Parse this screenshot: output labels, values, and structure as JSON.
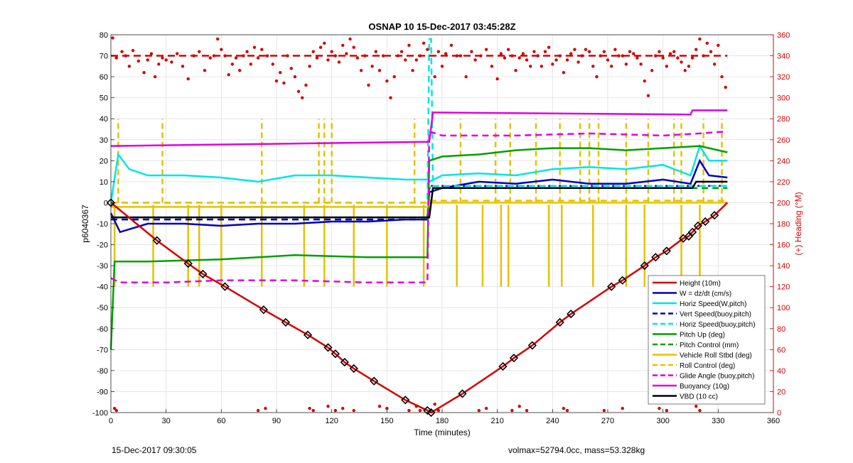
{
  "title": "OSNAP 10 15-Dec-2017 03:45:28Z",
  "footer_left": "15-Dec-2017 09:30:05",
  "footer_right": "volmax=52794.0cc, mass=53.328kg",
  "chart_data": {
    "type": "line",
    "xlabel": "Time (minutes)",
    "ylabel_left": "p6040367",
    "ylabel_right": "(+) Heading (°M)",
    "xlim": [
      0,
      360
    ],
    "ylim_left": [
      -100,
      80
    ],
    "ylim_right": [
      0,
      360
    ],
    "grid": true,
    "legend_placement": "lower-right",
    "x_ticks": [
      "0",
      "30",
      "60",
      "90",
      "120",
      "150",
      "180",
      "210",
      "240",
      "270",
      "300",
      "330",
      "360"
    ],
    "y_ticks_left": [
      "80",
      "70",
      "60",
      "50",
      "40",
      "30",
      "20",
      "10",
      "0",
      "-10",
      "-20",
      "-30",
      "-40",
      "-50",
      "-60",
      "-70",
      "-80",
      "-90",
      "-100"
    ],
    "y_ticks_right": [
      "360",
      "340",
      "320",
      "300",
      "280",
      "260",
      "240",
      "220",
      "200",
      "180",
      "160",
      "140",
      "120",
      "100",
      "80",
      "60",
      "40",
      "20",
      "0"
    ],
    "colors": {
      "red": "#d40000",
      "blue": "#0000c0",
      "cyan": "#00e5e5",
      "green": "#00a000",
      "yellow": "#e6c200",
      "magenta": "#e000e0",
      "black": "#000000"
    },
    "series": [
      {
        "name": "Height (10m)",
        "color": "#d40000",
        "style": "solid",
        "x": [
          0,
          25,
          42,
          50,
          62,
          83,
          95,
          107,
          118,
          122,
          127,
          132,
          143,
          160,
          172,
          174,
          191,
          213,
          219,
          229,
          244,
          250,
          272,
          278,
          290,
          296,
          302,
          311,
          314,
          316,
          319,
          323,
          328,
          335
        ],
        "y": [
          0,
          -18,
          -29,
          -34,
          -40,
          -51,
          -57,
          -63,
          -69,
          -72,
          -76,
          -79,
          -85,
          -94,
          -99,
          -100,
          -91,
          -78,
          -74,
          -68,
          -57,
          -53,
          -40,
          -37,
          -30,
          -26,
          -23,
          -17,
          -16,
          -14,
          -11,
          -9,
          -6,
          0
        ]
      },
      {
        "name": "W = dz/dt (cm/s)",
        "color": "#0000c0",
        "style": "solid",
        "x": [
          0,
          5,
          20,
          40,
          60,
          80,
          100,
          120,
          140,
          160,
          172,
          173,
          180,
          200,
          220,
          240,
          260,
          280,
          300,
          315,
          320,
          325,
          335
        ],
        "y": [
          -5,
          -14,
          -10,
          -10,
          -11,
          -10,
          -10,
          -9,
          -9,
          -8,
          -8,
          5,
          7,
          10,
          9,
          11,
          9,
          9,
          11,
          9,
          20,
          13,
          12
        ]
      },
      {
        "name": "Horiz Speed(W,pitch)",
        "color": "#00e5e5",
        "style": "solid",
        "x": [
          0,
          4,
          10,
          20,
          40,
          60,
          80,
          100,
          120,
          140,
          160,
          172,
          173,
          180,
          200,
          220,
          240,
          260,
          280,
          300,
          315,
          320,
          325,
          335
        ],
        "y": [
          0,
          23,
          16,
          13,
          13,
          12,
          10,
          13,
          13,
          12,
          11,
          11,
          10,
          13,
          14,
          13,
          16,
          17,
          16,
          18,
          13,
          27,
          20,
          20
        ]
      },
      {
        "name": "Vert Speed(buoy,pitch)",
        "color": "#0000c0",
        "style": "dash",
        "x": [
          0,
          172,
          173,
          335
        ],
        "y": [
          -8,
          -8,
          8,
          8
        ]
      },
      {
        "name": "Horiz Speed(buoy,pitch)",
        "color": "#00e5e5",
        "style": "dash",
        "x": [
          0,
          172,
          173,
          174,
          175,
          335
        ],
        "y": [
          0,
          0,
          78,
          78,
          8,
          8
        ]
      },
      {
        "name": "Pitch Up (deg)",
        "color": "#00a000",
        "style": "solid",
        "x": [
          0,
          2,
          20,
          60,
          80,
          100,
          140,
          160,
          172,
          173,
          180,
          200,
          220,
          240,
          260,
          280,
          300,
          320,
          335
        ],
        "y": [
          -70,
          -28,
          -28,
          -27,
          -26,
          -25,
          -26,
          -26,
          -26,
          20,
          22,
          23,
          25,
          26,
          26,
          25,
          26,
          27,
          24
        ]
      },
      {
        "name": "Pitch Control (mm)",
        "color": "#00a000",
        "style": "dash",
        "x": [
          0,
          172,
          173,
          335
        ],
        "y": [
          -7,
          -7,
          7,
          7
        ]
      },
      {
        "name": "Vehicle Roll Stbd (deg)",
        "color": "#e6c200",
        "style": "solid",
        "x": [
          0,
          172,
          173,
          335
        ],
        "y": [
          -2,
          -2,
          0,
          0
        ]
      },
      {
        "name": "Roll Control (deg)",
        "color": "#e6c200",
        "style": "dash",
        "x": [
          0,
          172,
          173,
          335
        ],
        "y": [
          0,
          0,
          1,
          1
        ]
      },
      {
        "name": "Glide Angle (buoy,pitch)",
        "color": "#e000e0",
        "style": "dash",
        "x": [
          0,
          5,
          30,
          60,
          100,
          140,
          172,
          173,
          180,
          220,
          260,
          300,
          320,
          335
        ],
        "y": [
          -36,
          -38,
          -38,
          -37,
          -37,
          -38,
          -38,
          34,
          32,
          32,
          33,
          32,
          33,
          34
        ]
      },
      {
        "name": "Buoyancy (10g)",
        "color": "#e000e0",
        "style": "solid",
        "x": [
          0,
          172,
          173,
          175,
          315,
          316,
          335
        ],
        "y": [
          27,
          29,
          29,
          43,
          42,
          44,
          44
        ]
      },
      {
        "name": "VBD (10 cc)",
        "color": "#000000",
        "style": "solid",
        "x": [
          0,
          172,
          173,
          175,
          316,
          318,
          335
        ],
        "y": [
          -7,
          -7,
          -7,
          7,
          7,
          10,
          10
        ]
      }
    ],
    "yellow_spikes_down": [
      2,
      23,
      42,
      48,
      60,
      82,
      105,
      116,
      132,
      150,
      170,
      188,
      202,
      212,
      216,
      238,
      245,
      262,
      280,
      290,
      310,
      320
    ],
    "yellow_spikes_up": [
      4,
      28,
      82,
      113,
      116,
      120,
      165,
      190,
      209,
      217,
      231,
      244,
      255,
      260,
      265,
      280,
      292,
      306,
      310,
      322,
      332
    ],
    "heading_dots": [
      [
        1,
        357
      ],
      [
        3,
        338
      ],
      [
        6,
        344
      ],
      [
        8,
        340
      ],
      [
        10,
        330
      ],
      [
        12,
        345
      ],
      [
        15,
        335
      ],
      [
        18,
        324
      ],
      [
        20,
        336
      ],
      [
        22,
        342
      ],
      [
        24,
        320
      ],
      [
        26,
        332
      ],
      [
        28,
        338
      ],
      [
        30,
        336
      ],
      [
        33,
        334
      ],
      [
        36,
        342
      ],
      [
        39,
        330
      ],
      [
        42,
        318
      ],
      [
        45,
        340
      ],
      [
        48,
        344
      ],
      [
        51,
        326
      ],
      [
        54,
        338
      ],
      [
        56,
        340
      ],
      [
        58,
        356
      ],
      [
        60,
        346
      ],
      [
        62,
        340
      ],
      [
        64,
        322
      ],
      [
        66,
        332
      ],
      [
        68,
        338
      ],
      [
        70,
        326
      ],
      [
        72,
        340
      ],
      [
        74,
        344
      ],
      [
        76,
        332
      ],
      [
        78,
        348
      ],
      [
        80,
        338
      ],
      [
        82,
        346
      ],
      [
        85,
        340
      ],
      [
        88,
        332
      ],
      [
        90,
        316
      ],
      [
        92,
        324
      ],
      [
        94,
        314
      ],
      [
        96,
        340
      ],
      [
        98,
        328
      ],
      [
        100,
        320
      ],
      [
        102,
        306
      ],
      [
        104,
        300
      ],
      [
        106,
        312
      ],
      [
        108,
        330
      ],
      [
        110,
        344
      ],
      [
        112,
        338
      ],
      [
        114,
        348
      ],
      [
        116,
        352
      ],
      [
        118,
        336
      ],
      [
        120,
        344
      ],
      [
        122,
        340
      ],
      [
        124,
        334
      ],
      [
        126,
        350
      ],
      [
        128,
        342
      ],
      [
        130,
        356
      ],
      [
        132,
        348
      ],
      [
        134,
        338
      ],
      [
        136,
        326
      ],
      [
        138,
        340
      ],
      [
        140,
        312
      ],
      [
        142,
        330
      ],
      [
        144,
        344
      ],
      [
        146,
        326
      ],
      [
        148,
        340
      ],
      [
        150,
        316
      ],
      [
        152,
        300
      ],
      [
        154,
        320
      ],
      [
        156,
        340
      ],
      [
        158,
        344
      ],
      [
        160,
        336
      ],
      [
        162,
        350
      ],
      [
        164,
        326
      ],
      [
        166,
        336
      ],
      [
        168,
        340
      ],
      [
        170,
        352
      ],
      [
        172,
        346
      ],
      [
        176,
        320
      ],
      [
        178,
        344
      ],
      [
        180,
        330
      ],
      [
        182,
        342
      ],
      [
        185,
        350
      ],
      [
        188,
        340
      ],
      [
        190,
        340
      ],
      [
        193,
        320
      ],
      [
        196,
        344
      ],
      [
        198,
        336
      ],
      [
        201,
        340
      ],
      [
        204,
        346
      ],
      [
        207,
        330
      ],
      [
        210,
        318
      ],
      [
        212,
        342
      ],
      [
        214,
        338
      ],
      [
        216,
        346
      ],
      [
        218,
        340
      ],
      [
        220,
        326
      ],
      [
        222,
        338
      ],
      [
        224,
        342
      ],
      [
        226,
        336
      ],
      [
        228,
        330
      ],
      [
        230,
        344
      ],
      [
        232,
        340
      ],
      [
        234,
        330
      ],
      [
        236,
        344
      ],
      [
        238,
        348
      ],
      [
        240,
        332
      ],
      [
        242,
        336
      ],
      [
        244,
        340
      ],
      [
        246,
        324
      ],
      [
        248,
        336
      ],
      [
        250,
        342
      ],
      [
        252,
        346
      ],
      [
        254,
        334
      ],
      [
        256,
        340
      ],
      [
        258,
        346
      ],
      [
        260,
        344
      ],
      [
        262,
        330
      ],
      [
        264,
        320
      ],
      [
        266,
        340
      ],
      [
        268,
        344
      ],
      [
        270,
        336
      ],
      [
        272,
        330
      ],
      [
        274,
        346
      ],
      [
        276,
        340
      ],
      [
        278,
        340
      ],
      [
        280,
        332
      ],
      [
        282,
        344
      ],
      [
        284,
        342
      ],
      [
        286,
        338
      ],
      [
        288,
        332
      ],
      [
        290,
        316
      ],
      [
        292,
        302
      ],
      [
        294,
        326
      ],
      [
        296,
        340
      ],
      [
        298,
        344
      ],
      [
        300,
        338
      ],
      [
        302,
        330
      ],
      [
        304,
        342
      ],
      [
        306,
        344
      ],
      [
        308,
        338
      ],
      [
        310,
        334
      ],
      [
        312,
        326
      ],
      [
        314,
        330
      ],
      [
        316,
        338
      ],
      [
        318,
        346
      ],
      [
        320,
        356
      ],
      [
        322,
        340
      ],
      [
        324,
        352
      ],
      [
        326,
        344
      ],
      [
        328,
        332
      ],
      [
        330,
        350
      ],
      [
        332,
        320
      ],
      [
        334,
        310
      ]
    ],
    "heading_low_dots": [
      [
        2,
        4
      ],
      [
        3,
        2
      ],
      [
        80,
        2
      ],
      [
        84,
        4
      ],
      [
        108,
        4
      ],
      [
        110,
        2
      ],
      [
        118,
        6
      ],
      [
        122,
        2
      ],
      [
        126,
        4
      ],
      [
        132,
        2
      ],
      [
        146,
        6
      ],
      [
        150,
        4
      ],
      [
        162,
        2
      ],
      [
        166,
        6
      ],
      [
        168,
        2
      ],
      [
        176,
        8
      ],
      [
        178,
        2
      ],
      [
        200,
        2
      ],
      [
        204,
        4
      ],
      [
        218,
        2
      ],
      [
        222,
        6
      ],
      [
        226,
        2
      ],
      [
        246,
        4
      ],
      [
        248,
        2
      ],
      [
        268,
        2
      ],
      [
        278,
        4
      ],
      [
        298,
        4
      ],
      [
        302,
        2
      ],
      [
        318,
        6
      ],
      [
        320,
        2
      ]
    ],
    "height_markers": [
      0,
      25,
      42,
      50,
      62,
      83,
      95,
      107,
      118,
      122,
      127,
      132,
      143,
      160,
      172,
      174,
      191,
      213,
      219,
      229,
      244,
      250,
      272,
      278,
      290,
      296,
      302,
      311,
      314,
      316,
      319,
      323,
      328
    ]
  }
}
